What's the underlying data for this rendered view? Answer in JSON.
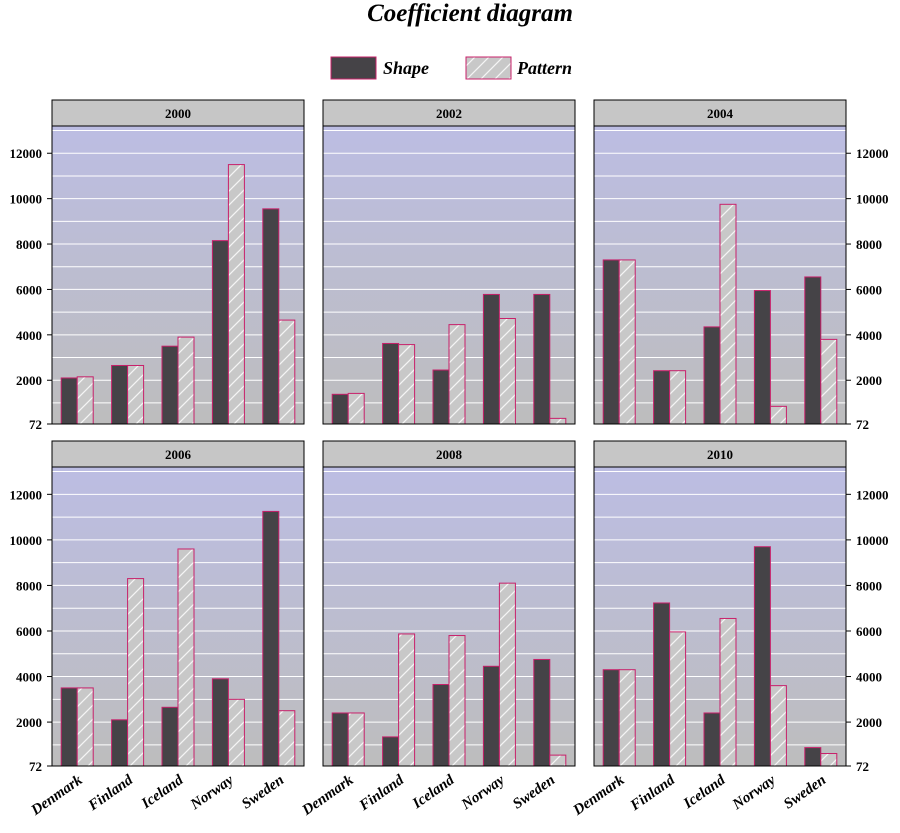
{
  "chart_data": {
    "type": "bar",
    "title": "Coefficient diagram",
    "legend": [
      {
        "name": "Shape",
        "fill": "#454347",
        "stroke": "#c8206a"
      },
      {
        "name": "Pattern",
        "fill": "#c8c8c8",
        "stroke": "#c8206a",
        "hatch": "#f4f4f4"
      }
    ],
    "categories": [
      "Denmark",
      "Finland",
      "Iceland",
      "Norway",
      "Sweden"
    ],
    "yticks": [
      72,
      2000,
      4000,
      6000,
      8000,
      10000,
      12000
    ],
    "ylim": [
      72,
      13200
    ],
    "colors": {
      "plot_top": "#bcbde3",
      "plot_bottom": "#bdbdbd",
      "header": "#c6c6c6",
      "grid": "#ffffff",
      "bar_stroke": "#c8206a"
    },
    "panels": [
      {
        "title": "2000",
        "series": [
          {
            "name": "Shape",
            "values": [
              2100,
              2650,
              3500,
              8150,
              9550
            ]
          },
          {
            "name": "Pattern",
            "values": [
              2150,
              2650,
              3900,
              11500,
              4650
            ]
          }
        ]
      },
      {
        "title": "2002",
        "series": [
          {
            "name": "Shape",
            "values": [
              1380,
              3620,
              2450,
              5780,
              5780
            ]
          },
          {
            "name": "Pattern",
            "values": [
              1420,
              3570,
              4450,
              4720,
              320
            ]
          }
        ]
      },
      {
        "title": "2004",
        "series": [
          {
            "name": "Shape",
            "values": [
              7300,
              2420,
              4350,
              5950,
              6550
            ]
          },
          {
            "name": "Pattern",
            "values": [
              7300,
              2420,
              9750,
              850,
              3800
            ]
          }
        ]
      },
      {
        "title": "2006",
        "series": [
          {
            "name": "Shape",
            "values": [
              3500,
              2100,
              2650,
              3900,
              11250
            ]
          },
          {
            "name": "Pattern",
            "values": [
              3500,
              8300,
              9600,
              3000,
              2500
            ]
          }
        ]
      },
      {
        "title": "2008",
        "series": [
          {
            "name": "Shape",
            "values": [
              2400,
              1350,
              3650,
              4450,
              4750
            ]
          },
          {
            "name": "Pattern",
            "values": [
              2400,
              5870,
              5800,
              8100,
              550
            ]
          }
        ]
      },
      {
        "title": "2010",
        "series": [
          {
            "name": "Shape",
            "values": [
              4300,
              7230,
              2400,
              9700,
              880
            ]
          },
          {
            "name": "Pattern",
            "values": [
              4300,
              5960,
              6550,
              3600,
              620
            ]
          }
        ]
      }
    ]
  }
}
